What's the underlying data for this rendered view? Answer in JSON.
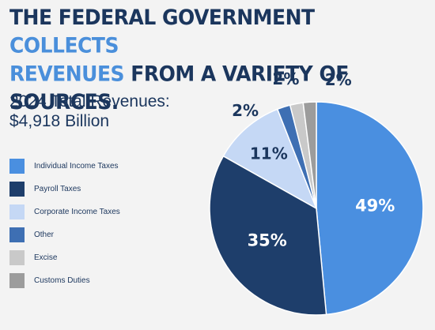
{
  "headline": {
    "part1": "THE FEDERAL GOVERNMENT ",
    "accent1": "COLLECTS",
    "accent2": "REVENUES",
    "part2": " FROM A VARIETY OF SOURCES."
  },
  "subtitle": {
    "line1": "2024 Total Revenues:",
    "line2": "$4,918 Billion"
  },
  "chart_data": {
    "type": "pie",
    "title": "2024 Total Revenues: $4,918 Billion",
    "categories": [
      "Individual Income Taxes",
      "Payroll Taxes",
      "Corporate Income Taxes",
      "Other",
      "Excise",
      "Customs Duties"
    ],
    "values": [
      49,
      35,
      11,
      2,
      2,
      2
    ],
    "value_labels": [
      "49%",
      "35%",
      "11%",
      "2%",
      "2%",
      "2%"
    ],
    "colors": [
      "#4a8fe0",
      "#1e3e6b",
      "#c5d8f5",
      "#3e6fb3",
      "#c9c9c9",
      "#9c9c9c"
    ],
    "label_colors": [
      "#ffffff",
      "#ffffff",
      "#1b365d",
      "#1b365d",
      "#1b365d",
      "#1b365d"
    ],
    "legend_position": "left",
    "start_angle_deg": -90,
    "direction": "clockwise"
  }
}
